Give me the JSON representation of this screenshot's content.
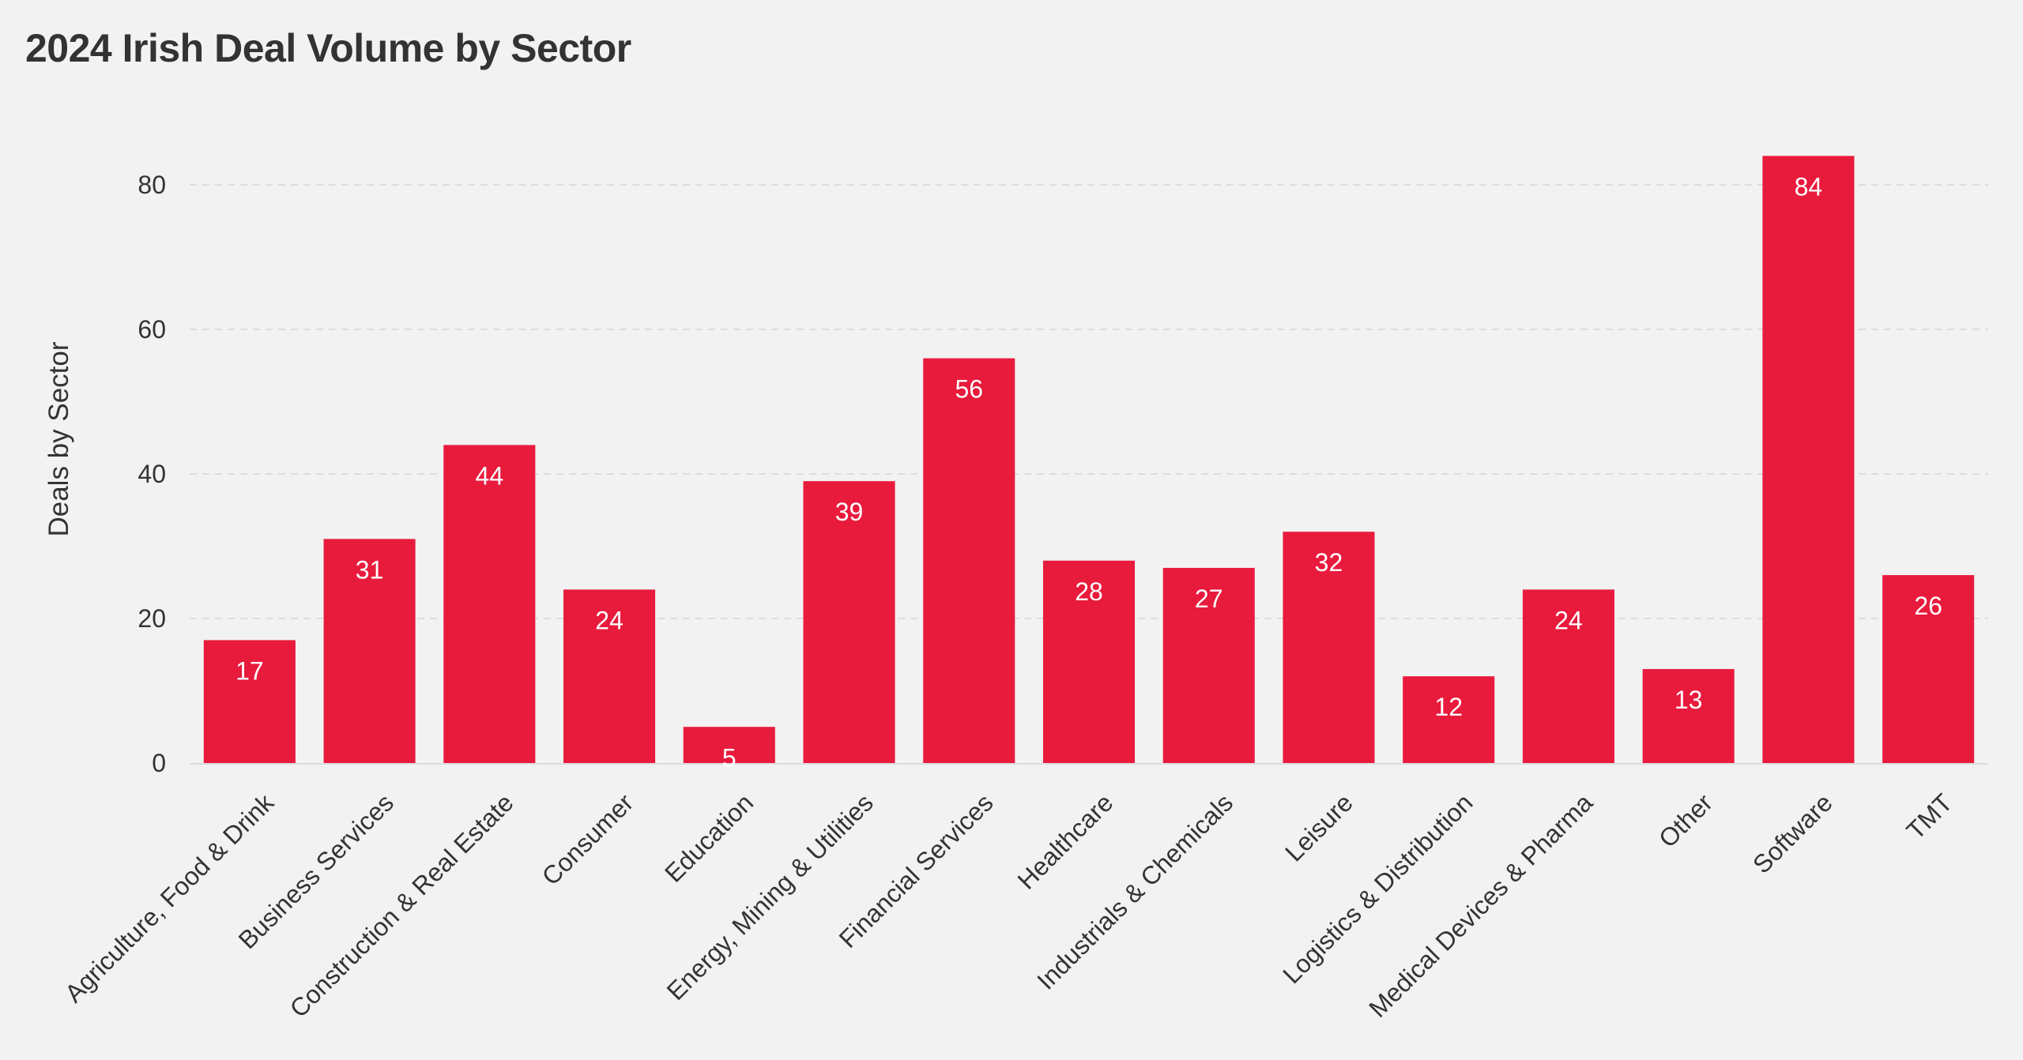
{
  "title": "2024 Irish Deal Volume by Sector",
  "chart_data": {
    "type": "bar",
    "title": "2024 Irish Deal Volume by Sector",
    "xlabel": "",
    "ylabel": "Deals by Sector",
    "categories": [
      "Agriculture, Food & Drink",
      "Business Services",
      "Construction & Real Estate",
      "Consumer",
      "Education",
      "Energy, Mining & Utilities",
      "Financial Services",
      "Healthcare",
      "Industrials & Chemicals",
      "Leisure",
      "Logistics & Distribution",
      "Medical Devices & Pharma",
      "Other",
      "Software",
      "TMT"
    ],
    "values": [
      17,
      31,
      44,
      24,
      5,
      39,
      56,
      28,
      27,
      32,
      12,
      24,
      13,
      84,
      26
    ],
    "yticks": [
      0,
      20,
      40,
      60,
      80
    ],
    "ylim": [
      0,
      88
    ],
    "grid": true,
    "data_labels": true,
    "legend": "none",
    "bar_color": "#e81b3d",
    "grid_color": "#dddddd",
    "text_color": "#333333",
    "background": "#f2f2f2"
  }
}
